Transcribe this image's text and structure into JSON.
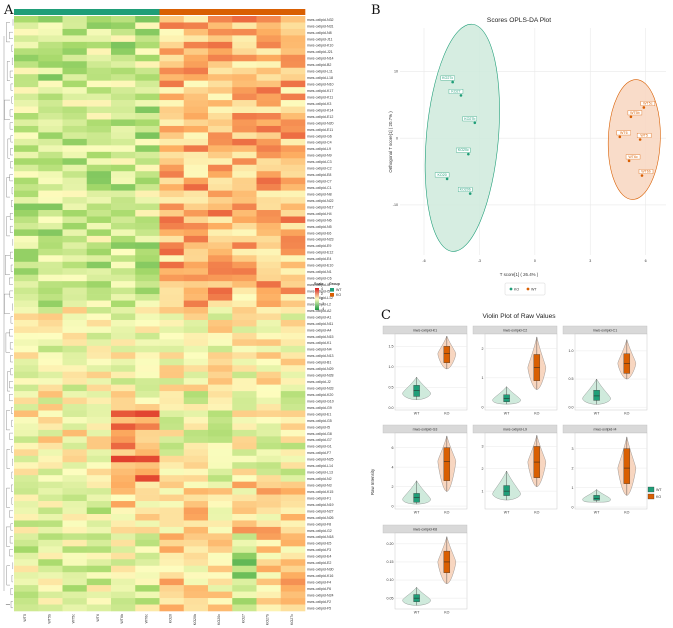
{
  "panels": {
    "a": "A",
    "b": "B",
    "c": "C"
  },
  "colors": {
    "wt": "#1f9e78",
    "ko": "#d95f02",
    "wt_fill": "#cfeadc",
    "ko_fill": "#f8d6c0",
    "heat_low": "#1a9641",
    "heat_mid": "#fdfdbf",
    "heat_high": "#d7191c",
    "grid": "#e9e9e9"
  },
  "heatmap": {
    "samples": [
      "WT5",
      "WT5b",
      "WT5c",
      "WT6",
      "WT6b",
      "WT6c",
      "KO20",
      "KO20b",
      "KO20c",
      "KO27",
      "KO27b",
      "KO27c"
    ],
    "groups": [
      "WT",
      "WT",
      "WT",
      "WT",
      "WT",
      "WT",
      "KO",
      "KO",
      "KO",
      "KO",
      "KO",
      "KO"
    ],
    "rows": [
      "mws-oxlipid-N32",
      "mws-oxlipid-N31",
      "mws-oxlipid-N8",
      "mws-oxlipid-J11",
      "mws-oxlipid-K10",
      "mws-oxlipid-J21",
      "mws-oxlipid-N14",
      "mws-oxlipid-B2",
      "mws-oxlipid-L11",
      "mws-oxlipid-L18",
      "mws-oxlipid-N10",
      "mws-oxlipid-K17",
      "mws-oxlipid-K11",
      "mws-oxlipid-K3",
      "mws-oxlipid-K14",
      "mws-oxlipid-E12",
      "mws-oxlipid-N20",
      "mws-oxlipid-E11",
      "mws-oxlipid-G6",
      "mws-oxlipid-C4",
      "mws-oxlipid-L9",
      "mws-oxlipid-N9",
      "mws-oxlipid-C3",
      "mws-oxlipid-C2",
      "mws-oxlipid-E8",
      "mws-oxlipid-C7",
      "mws-oxlipid-C1",
      "mws-oxlipid-N8",
      "mws-oxlipid-N22",
      "mws-oxlipid-N17",
      "mws-oxlipid-H4",
      "mws-oxlipid-N6",
      "mws-oxlipid-N5",
      "mws-oxlipid-E6",
      "mws-oxlipid-N23",
      "mws-oxlipid-E9",
      "mws-oxlipid-E12",
      "mws-oxlipid-E4",
      "mws-oxlipid-E10",
      "mws-oxlipid-N1",
      "mws-oxlipid-C6",
      "mws-oxlipid-I6",
      "mws-oxlipid-I5",
      "mws-oxlipid-L12",
      "mws-oxlipid-L2",
      "mws-oxlipid-A2",
      "mws-oxlipid-A1",
      "mws-oxlipid-N11",
      "mws-oxlipid-A4",
      "mws-oxlipid-N15",
      "mws-oxlipid-K1",
      "mws-oxlipid-N4",
      "mws-oxlipid-N13",
      "mws-oxlipid-B1",
      "mws-oxlipid-N29",
      "mws-oxlipid-N28",
      "mws-oxlipid-J2",
      "mws-oxlipid-N33",
      "mws-oxlipid-K20",
      "mws-oxlipid-G10",
      "mws-oxlipid-G9",
      "mws-oxlipid-E1",
      "mws-oxlipid-G5",
      "mws-oxlipid-I5",
      "mws-oxlipid-G8",
      "mws-oxlipid-G7",
      "mws-oxlipid-G1",
      "mws-oxlipid-F7",
      "mws-oxlipid-N25",
      "mws-oxlipid-L14",
      "mws-oxlipid-L13",
      "mws-oxlipid-N2",
      "mws-oxlipid-N3",
      "mws-oxlipid-K15",
      "mws-oxlipid-F1",
      "mws-oxlipid-N19",
      "mws-oxlipid-N27",
      "mws-oxlipid-N26",
      "mws-oxlipid-F8",
      "mws-oxlipid-G2",
      "mws-oxlipid-N18",
      "mws-oxlipid-E5",
      "mws-oxlipid-F3",
      "mws-oxlipid-E4",
      "mws-oxlipid-E2",
      "mws-oxlipid-N30",
      "mws-oxlipid-K16",
      "mws-oxlipid-F4",
      "mws-oxlipid-F6",
      "mws-oxlipid-N24",
      "mws-oxlipid-F2",
      "mws-oxlipid-F5"
    ],
    "legend": {
      "scale_title": "Scale",
      "scale_ticks": [
        "4",
        "2",
        "0",
        "-2",
        "-4"
      ],
      "group_title": "Group",
      "group_labels": [
        "WT",
        "KO"
      ]
    },
    "chart_data": {
      "type": "heatmap",
      "value_range": [
        -4,
        4
      ],
      "note": "row-scaled intensities; 92 metabolites x 12 samples, hierarchical clustering dendrogram on rows"
    }
  },
  "opls": {
    "chart_data": {
      "type": "scatter",
      "title": "Scores OPLS-DA Plot",
      "xlabel": "T score[1] ( 26.4% )",
      "ylabel": "Orthogonal T score[1] ( 20.7% )",
      "xticks": [
        "-6",
        "-3",
        "0",
        "3",
        "6"
      ],
      "xtick_values": [
        -6,
        -3,
        0,
        3,
        6
      ],
      "yticks": [
        "10",
        "0",
        "-10"
      ],
      "ytick_values": [
        10,
        0,
        -10
      ],
      "xlim": [
        -7.3,
        7.1
      ],
      "ylim": [
        -17.5,
        16.5
      ],
      "series": [
        {
          "name": "KO",
          "points": [
            {
              "label": "KO27c",
              "x": -4.45,
              "y": 8.4
            },
            {
              "label": "KO27",
              "x": -4.0,
              "y": 6.4
            },
            {
              "label": "KO27b",
              "x": -3.25,
              "y": 2.3
            },
            {
              "label": "KO20c",
              "x": -3.6,
              "y": -2.4
            },
            {
              "label": "KO20",
              "x": -4.75,
              "y": -6.1
            },
            {
              "label": "KO20b",
              "x": -3.5,
              "y": -8.3
            }
          ]
        },
        {
          "name": "WT",
          "points": [
            {
              "label": "WT5c",
              "x": 5.9,
              "y": 4.6
            },
            {
              "label": "WT5b",
              "x": 5.2,
              "y": 3.2
            },
            {
              "label": "WT6",
              "x": 4.6,
              "y": 0.2
            },
            {
              "label": "WT5",
              "x": 5.7,
              "y": -0.2
            },
            {
              "label": "WT6c",
              "x": 5.1,
              "y": -3.4
            },
            {
              "label": "WT6b",
              "x": 5.8,
              "y": -5.6
            }
          ]
        }
      ],
      "legend": [
        "KO",
        "WT"
      ]
    }
  },
  "violin": {
    "title": "Violin Plot of Raw Values",
    "ylabel": "Raw Intensity",
    "legend": [
      "WT",
      "KO"
    ],
    "chart_data": {
      "type": "violin",
      "categories": [
        "WT",
        "KO"
      ],
      "facets": [
        {
          "name": "mws-oxlipid-K1",
          "yticks": [
            "1.5",
            "1.0",
            "0.5",
            "0.0"
          ],
          "tick_values": [
            1.5,
            1.0,
            0.5,
            0.0
          ],
          "ylim": [
            -0.05,
            1.8
          ],
          "WT": {
            "q1": 0.28,
            "med": 0.42,
            "q3": 0.55,
            "lo": 0.2,
            "hi": 0.75
          },
          "KO": {
            "q1": 1.1,
            "med": 1.32,
            "q3": 1.5,
            "lo": 0.95,
            "hi": 1.75
          }
        },
        {
          "name": "mws-oxlipid-C2",
          "yticks": [
            "2",
            "1",
            "0"
          ],
          "tick_values": [
            2,
            1,
            0
          ],
          "ylim": [
            -0.1,
            2.5
          ],
          "WT": {
            "q1": 0.18,
            "med": 0.3,
            "q3": 0.42,
            "lo": 0.1,
            "hi": 0.7
          },
          "KO": {
            "q1": 0.9,
            "med": 1.35,
            "q3": 1.8,
            "lo": 0.6,
            "hi": 2.4
          }
        },
        {
          "name": "mws-oxlipid-C1",
          "yticks": [
            "1.0",
            "0.5",
            "0.0"
          ],
          "tick_values": [
            1.0,
            0.5,
            0.0
          ],
          "ylim": [
            -0.05,
            1.3
          ],
          "WT": {
            "q1": 0.12,
            "med": 0.2,
            "q3": 0.3,
            "lo": 0.05,
            "hi": 0.5
          },
          "KO": {
            "q1": 0.6,
            "med": 0.78,
            "q3": 0.95,
            "lo": 0.5,
            "hi": 1.2
          }
        },
        {
          "name": "mws-oxlipid-G3",
          "yticks": [
            "6",
            "4",
            "2",
            "0"
          ],
          "tick_values": [
            6,
            4,
            2,
            0
          ],
          "ylim": [
            -0.3,
            7.5
          ],
          "WT": {
            "q1": 0.4,
            "med": 0.9,
            "q3": 1.3,
            "lo": 0.2,
            "hi": 2.6
          },
          "KO": {
            "q1": 2.6,
            "med": 4.6,
            "q3": 6.0,
            "lo": 1.5,
            "hi": 7.2
          }
        },
        {
          "name": "mws-oxlipid-L9",
          "yticks": [
            "3",
            "2",
            "1"
          ],
          "tick_values": [
            3,
            2,
            1
          ],
          "ylim": [
            0.2,
            3.6
          ],
          "WT": {
            "q1": 0.8,
            "med": 1.0,
            "q3": 1.25,
            "lo": 0.6,
            "hi": 1.9
          },
          "KO": {
            "q1": 1.6,
            "med": 2.3,
            "q3": 3.0,
            "lo": 1.2,
            "hi": 3.5
          }
        },
        {
          "name": "mws-oxlipid-I4",
          "yticks": [
            "3",
            "2",
            "1",
            "0"
          ],
          "tick_values": [
            3,
            2,
            1,
            0
          ],
          "ylim": [
            -0.1,
            3.8
          ],
          "WT": {
            "q1": 0.35,
            "med": 0.45,
            "q3": 0.6,
            "lo": 0.25,
            "hi": 0.9
          },
          "KO": {
            "q1": 1.2,
            "med": 2.0,
            "q3": 3.0,
            "lo": 0.6,
            "hi": 3.6
          }
        },
        {
          "name": "mws-oxlipid-K8",
          "yticks": [
            "0.20",
            "0.15",
            "0.10",
            "0.05"
          ],
          "tick_values": [
            0.2,
            0.15,
            0.1,
            0.05
          ],
          "ylim": [
            0.02,
            0.23
          ],
          "WT": {
            "q1": 0.04,
            "med": 0.05,
            "q3": 0.06,
            "lo": 0.03,
            "hi": 0.08
          },
          "KO": {
            "q1": 0.12,
            "med": 0.15,
            "q3": 0.18,
            "lo": 0.09,
            "hi": 0.22
          }
        }
      ]
    }
  }
}
